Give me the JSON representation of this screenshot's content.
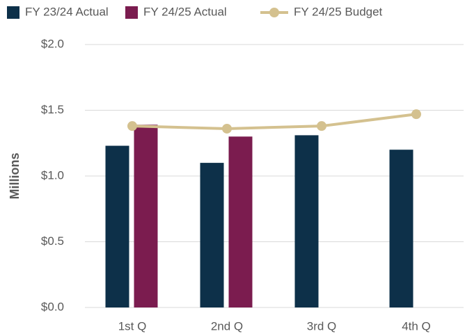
{
  "chart_data": {
    "type": "bar_line",
    "y_label": "Millions",
    "categories": [
      "1st Q",
      "2nd Q",
      "3rd Q",
      "4th Q"
    ],
    "series": [
      {
        "name": "FY 23/24 Actual",
        "type": "bar",
        "color": "#0d3049",
        "values": [
          1.23,
          1.1,
          1.31,
          1.2
        ]
      },
      {
        "name": "FY 24/25 Actual",
        "type": "bar",
        "color": "#7b1c4f",
        "values": [
          1.39,
          1.3,
          null,
          null
        ]
      },
      {
        "name": "FY 24/25 Budget",
        "type": "line",
        "color": "#d4c18f",
        "values": [
          1.38,
          1.36,
          1.38,
          1.47
        ]
      }
    ],
    "ylim": [
      0,
      2
    ],
    "yticks": [
      {
        "value": 0,
        "label": "$0.0"
      },
      {
        "value": 0.5,
        "label": "$0.5"
      },
      {
        "value": 1,
        "label": "$1.0"
      },
      {
        "value": 1.5,
        "label": "$1.5"
      },
      {
        "value": 2,
        "label": "$2.0"
      }
    ],
    "grid": true,
    "legend": "top"
  }
}
